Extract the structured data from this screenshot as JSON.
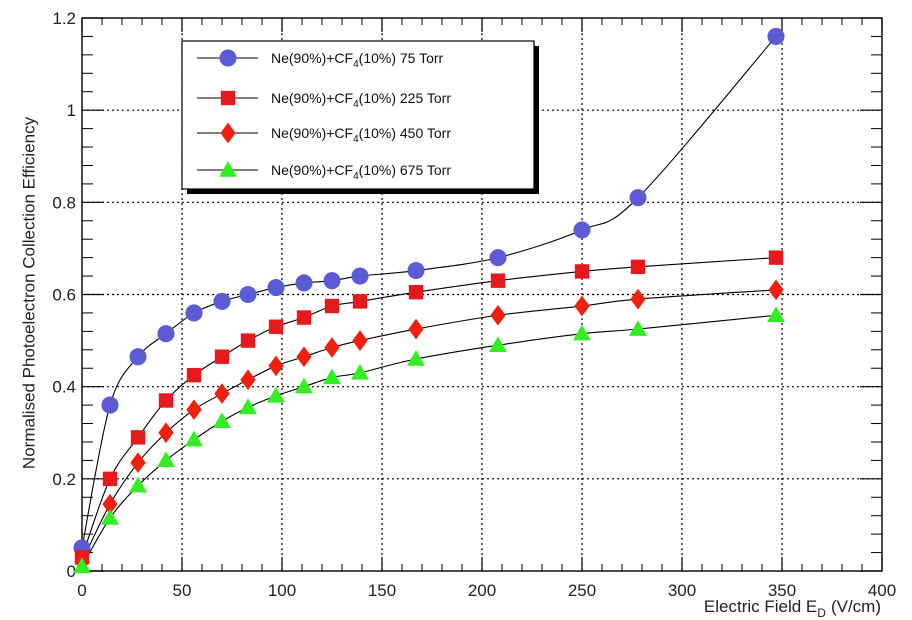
{
  "chart_data": {
    "type": "line",
    "title": "",
    "xlabel": "Electric Field E",
    "xlabel_subscript": "D",
    "xlabel_unit": "(V/cm)",
    "ylabel": "Normalised Photoelectron Collection Efficiency",
    "xlim": [
      0,
      400
    ],
    "ylim": [
      0,
      1.2
    ],
    "x_ticks": [
      0,
      50,
      100,
      150,
      200,
      250,
      300,
      350,
      400
    ],
    "y_ticks": [
      0,
      0.2,
      0.4,
      0.6,
      0.8,
      1.0,
      1.2
    ],
    "y_tick_labels": [
      "0",
      "0.2",
      "0.4",
      "0.6",
      "0.8",
      "1",
      "1.2"
    ],
    "grid": true,
    "legend_position": "top-left",
    "series": [
      {
        "name_prefix": "Ne(90%)+CF",
        "name_sub": "4",
        "name_suffix": "(10%) 75 Torr",
        "marker": "circle",
        "color": "#5b5bd6",
        "x": [
          0,
          14,
          28,
          42,
          56,
          70,
          83,
          97,
          111,
          125,
          139,
          167,
          208,
          250,
          278,
          347
        ],
        "y": [
          0.05,
          0.36,
          0.465,
          0.515,
          0.56,
          0.585,
          0.6,
          0.615,
          0.625,
          0.63,
          0.64,
          0.652,
          0.68,
          0.74,
          0.81,
          1.16
        ]
      },
      {
        "name_prefix": "Ne(90%)+CF",
        "name_sub": "4",
        "name_suffix": "(10%) 225 Torr",
        "marker": "square",
        "color": "#e8191c",
        "x": [
          0,
          14,
          28,
          42,
          56,
          70,
          83,
          97,
          111,
          125,
          139,
          167,
          208,
          250,
          278,
          347
        ],
        "y": [
          0.03,
          0.2,
          0.29,
          0.37,
          0.425,
          0.465,
          0.5,
          0.53,
          0.55,
          0.575,
          0.585,
          0.605,
          0.63,
          0.65,
          0.66,
          0.68
        ]
      },
      {
        "name_prefix": "Ne(90%)+CF",
        "name_sub": "4",
        "name_suffix": "(10%) 450 Torr",
        "marker": "diamond",
        "color": "#f0200e",
        "x": [
          0,
          14,
          28,
          42,
          56,
          70,
          83,
          97,
          111,
          125,
          139,
          167,
          208,
          250,
          278,
          347
        ],
        "y": [
          0.02,
          0.145,
          0.235,
          0.3,
          0.35,
          0.385,
          0.415,
          0.445,
          0.465,
          0.485,
          0.5,
          0.525,
          0.555,
          0.575,
          0.59,
          0.61
        ]
      },
      {
        "name_prefix": "Ne(90%)+CF",
        "name_sub": "4",
        "name_suffix": "(10%) 675 Torr",
        "marker": "triangle",
        "color": "#33ee22",
        "x": [
          0,
          14,
          28,
          42,
          56,
          70,
          83,
          97,
          111,
          125,
          139,
          167,
          208,
          250,
          278,
          347
        ],
        "y": [
          0.01,
          0.115,
          0.185,
          0.24,
          0.285,
          0.325,
          0.355,
          0.38,
          0.4,
          0.42,
          0.43,
          0.46,
          0.49,
          0.515,
          0.525,
          0.555
        ]
      }
    ]
  }
}
